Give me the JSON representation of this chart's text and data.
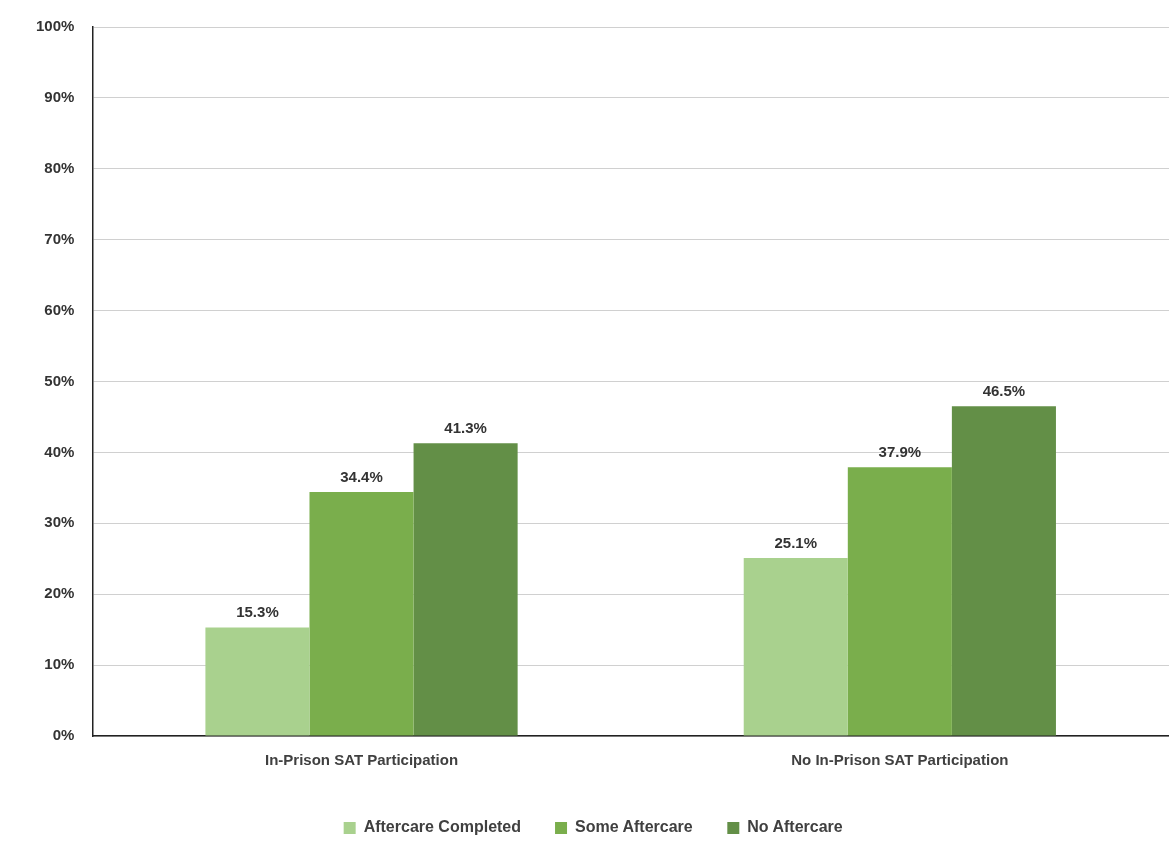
{
  "chart_data": {
    "type": "bar",
    "categories": [
      "In-Prison SAT Participation",
      "No In-Prison SAT Participation"
    ],
    "series": [
      {
        "name": "Aftercare Completed",
        "color": "#a9d18e",
        "values": [
          15.3,
          25.1
        ],
        "value_labels": [
          "15.3%",
          "25.1%"
        ]
      },
      {
        "name": "Some Aftercare",
        "color": "#7aae4c",
        "values": [
          34.4,
          37.9
        ],
        "value_labels": [
          "34.4%",
          "37.9%"
        ]
      },
      {
        "name": "No Aftercare",
        "color": "#638f47",
        "values": [
          41.3,
          46.5
        ],
        "value_labels": [
          "41.3%",
          "46.5%"
        ]
      }
    ],
    "ylim": [
      0,
      100
    ],
    "yticks": [
      {
        "value": 0,
        "label": "0%"
      },
      {
        "value": 10,
        "label": "10%"
      },
      {
        "value": 20,
        "label": "20%"
      },
      {
        "value": 30,
        "label": "30%"
      },
      {
        "value": 40,
        "label": "40%"
      },
      {
        "value": 50,
        "label": "50%"
      },
      {
        "value": 60,
        "label": "60%"
      },
      {
        "value": 70,
        "label": "70%"
      },
      {
        "value": 80,
        "label": "80%"
      },
      {
        "value": 90,
        "label": "90%"
      },
      {
        "value": 100,
        "label": "100%"
      }
    ],
    "grid": "y",
    "legend": "bottom"
  }
}
